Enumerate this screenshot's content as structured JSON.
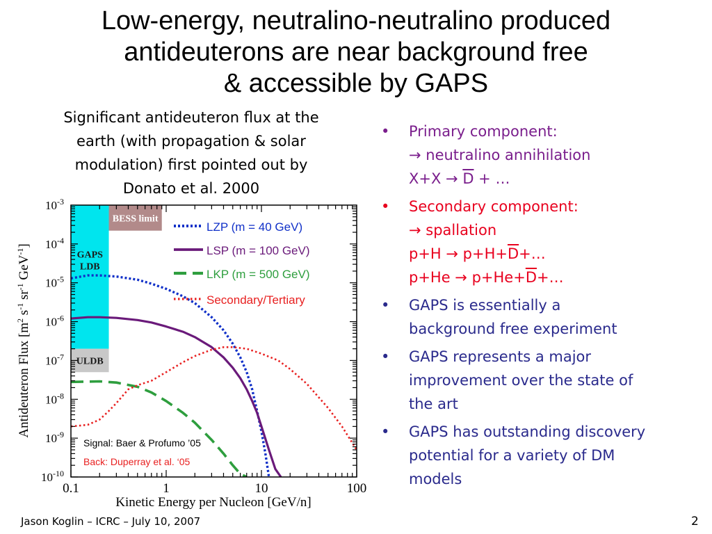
{
  "title": {
    "line1": "Low-energy, neutralino-neutralino produced",
    "line2": "antideuterons are near background free",
    "line3": "& accessible by GAPS"
  },
  "intro": {
    "line1": "Significant antideuteron flux at the",
    "line2": "earth (with propagation & solar",
    "line3": "modulation) first pointed out by",
    "line4": "Donato et al. 2000"
  },
  "bullets": {
    "primary": {
      "heading": "Primary component:",
      "sub": "→ neutralino annihilation",
      "eq_a": "X+X → ",
      "eq_d": "D",
      "eq_b": " + …",
      "color": "#7a1e8c"
    },
    "secondary": {
      "heading": "Secondary component:",
      "sub": "→ spallation",
      "eq1_a": "p+H → p+H+",
      "eq1_d": "D",
      "eq1_b": "+…",
      "eq2_a": "p+He → p+He+",
      "eq2_d": "D",
      "eq2_b": "+…",
      "color": "#e8001e"
    },
    "point3": {
      "line1": "GAPS is essentially a",
      "line2": "background free experiment"
    },
    "point4": {
      "line1": "GAPS represents a major",
      "line2": "improvement over the state of",
      "line3": "the art"
    },
    "point5": {
      "line1": "GAPS has outstanding discovery",
      "line2": "potential for a variety of DM",
      "line3": "models"
    },
    "bullet_char": "•",
    "blue_color": "#2a2a8c"
  },
  "chart_data": {
    "type": "line",
    "xlabel": "Kinetic Energy per Nucleon [GeV/n]",
    "ylabel_parts": [
      "Antideuteron Flux [m",
      "2",
      " s",
      "-1",
      " sr",
      "-1",
      " GeV",
      "-1",
      "]"
    ],
    "x_scale": "log",
    "y_scale": "log",
    "xlim": [
      0.1,
      100
    ],
    "ylim": [
      1e-10,
      0.001
    ],
    "x_ticks": [
      "0.1",
      "1",
      "10",
      "100"
    ],
    "y_ticks": [
      {
        "base": "10",
        "exp": "-3"
      },
      {
        "base": "10",
        "exp": "-4"
      },
      {
        "base": "10",
        "exp": "-5"
      },
      {
        "base": "10",
        "exp": "-6"
      },
      {
        "base": "10",
        "exp": "-7"
      },
      {
        "base": "10",
        "exp": "-8"
      },
      {
        "base": "10",
        "exp": "-9"
      },
      {
        "base": "10",
        "exp": "-10"
      }
    ],
    "regions": [
      {
        "label_lines": [
          "GAPS",
          "LDB"
        ],
        "x": [
          0.1,
          0.25
        ],
        "y": [
          2e-07,
          0.001
        ],
        "color": "#00e5ee"
      },
      {
        "label_lines": [
          "ULDB"
        ],
        "x": [
          0.1,
          0.25
        ],
        "y": [
          5e-08,
          2e-07
        ],
        "color": "#c8c8c8"
      },
      {
        "label_lines": [
          "BESS limit"
        ],
        "x": [
          0.25,
          0.9
        ],
        "y": [
          0.00022,
          0.001
        ],
        "color": "#b28a8a"
      }
    ],
    "series": [
      {
        "name": "LZP",
        "legend_rest": " (m = 40 GeV)",
        "color": "#1030c8",
        "dash": "dotted",
        "x": [
          0.1,
          0.15,
          0.2,
          0.3,
          0.5,
          0.7,
          1,
          1.5,
          2,
          3,
          4,
          5,
          6,
          7,
          8,
          9,
          10,
          11,
          12
        ],
        "y": [
          1.3e-05,
          1.55e-05,
          1.55e-05,
          1.45e-05,
          1.2e-05,
          9.5e-06,
          7e-06,
          4.5e-06,
          3e-06,
          1.3e-06,
          6e-07,
          2.7e-07,
          1.2e-07,
          5e-08,
          1.8e-08,
          5e-09,
          1.5e-09,
          4e-10,
          1e-10
        ]
      },
      {
        "name": "LSP",
        "legend_rest": " (m = 100 GeV)",
        "color": "#6a1a7a",
        "dash": "solid",
        "x": [
          0.1,
          0.15,
          0.2,
          0.3,
          0.5,
          0.7,
          1,
          1.5,
          2,
          3,
          4,
          5,
          6,
          7,
          8,
          9,
          10,
          12,
          14,
          16
        ],
        "y": [
          1.2e-06,
          1.3e-06,
          1.3e-06,
          1.25e-06,
          1.1e-06,
          9.5e-07,
          7.5e-07,
          5.5e-07,
          4e-07,
          2.2e-07,
          1.2e-07,
          6.5e-08,
          3.5e-08,
          1.8e-08,
          9e-09,
          4.5e-09,
          2e-09,
          5e-10,
          1.6e-10,
          1e-10
        ]
      },
      {
        "name": "LKP",
        "legend_rest": " (m = 500 GeV)",
        "color": "#2e9e3e",
        "dash": "dashed",
        "x": [
          0.1,
          0.2,
          0.3,
          0.5,
          0.7,
          1,
          1.5,
          2,
          3,
          4,
          5,
          6,
          7
        ],
        "y": [
          2.8e-08,
          2.9e-08,
          2.7e-08,
          2.1e-08,
          1.5e-08,
          9e-09,
          4.5e-09,
          2.5e-09,
          9e-10,
          4e-10,
          2e-10,
          1.2e-10,
          1e-10
        ]
      },
      {
        "name": "Secondary/Tertiary",
        "legend_rest": "",
        "color": "#e82020",
        "dash": "dotted-fine",
        "x": [
          0.1,
          0.15,
          0.2,
          0.25,
          0.3,
          0.4,
          0.5,
          0.7,
          1,
          1.5,
          2,
          3,
          4,
          5,
          7,
          10,
          15,
          20,
          30,
          50,
          70,
          100
        ],
        "y": [
          2e-09,
          2.2e-09,
          3e-09,
          5e-09,
          8e-09,
          1.8e-08,
          2.3e-08,
          3e-08,
          5e-08,
          9e-08,
          1.3e-07,
          1.9e-07,
          2.2e-07,
          2.2e-07,
          2e-07,
          1.5e-07,
          1e-07,
          6e-08,
          2.5e-08,
          6e-09,
          2e-09,
          5e-10
        ]
      }
    ],
    "annotations": [
      {
        "text": "Signal: Baer & Profumo ’05",
        "color": "#000000"
      },
      {
        "text": "Back: Duperray et al. ‘05",
        "color": "#e82020"
      }
    ]
  },
  "footer": {
    "left": "Jason Koglin – ICRC – July 10, 2007",
    "page": "2"
  }
}
